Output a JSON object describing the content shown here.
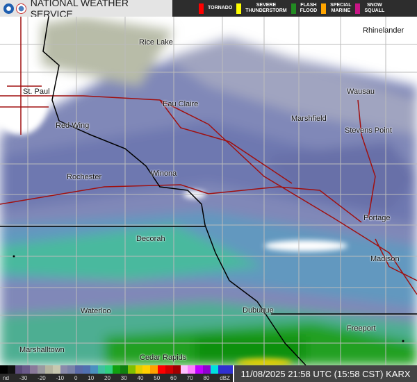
{
  "header": {
    "title": "NATIONAL WEATHER SERVICE",
    "logos": [
      "noaa-logo",
      "nws-logo"
    ]
  },
  "warnings": [
    {
      "label": "TORNADO",
      "color": "#ff0000"
    },
    {
      "label": "SEVERE\nTHUNDERSTORM",
      "color": "#ffff00"
    },
    {
      "label": "FLASH\nFLOOD",
      "color": "#228b22"
    },
    {
      "label": "SPECIAL\nMARINE",
      "color": "#ffa500"
    },
    {
      "label": "SNOW\nSQUALL",
      "color": "#c71585"
    }
  ],
  "cities": [
    "Rhinelander",
    "Rice Lake",
    "St. Paul",
    "Wausau",
    "Eau Claire",
    "Marshfield",
    "Red Wing",
    "Stevens Point",
    "Rochester",
    "Winona",
    "Portage",
    "Decorah",
    "Madison",
    "Waterloo",
    "Dubuque",
    "Freeport",
    "Marshalltown",
    "Cedar Rapids"
  ],
  "legend": {
    "ticks": [
      "nd",
      "-30",
      "-20",
      "-10",
      "0",
      "10",
      "20",
      "30",
      "40",
      "50",
      "60",
      "70",
      "80",
      "dBZ"
    ],
    "colors": [
      "#000",
      "#111",
      "#5a4a7a",
      "#6a5a8a",
      "#8a7a9a",
      "#9a9aa0",
      "#b5b5a0",
      "#c8c8b0",
      "#8a8aaa",
      "#7a82a8",
      "#5a6aa8",
      "#5070b0",
      "#4a90c0",
      "#40c0a0",
      "#30d080",
      "#10a010",
      "#108010",
      "#80c000",
      "#e0d000",
      "#ffd000",
      "#ffa000",
      "#ff0000",
      "#d00000",
      "#a00000",
      "#ffc0ff",
      "#ff80ff",
      "#c000ff",
      "#9000d0",
      "#00e0e0",
      "#3030d0",
      "#3030d0"
    ]
  },
  "timestamp": "11/08/2025 21:58 UTC (15:58 CST) KARX"
}
